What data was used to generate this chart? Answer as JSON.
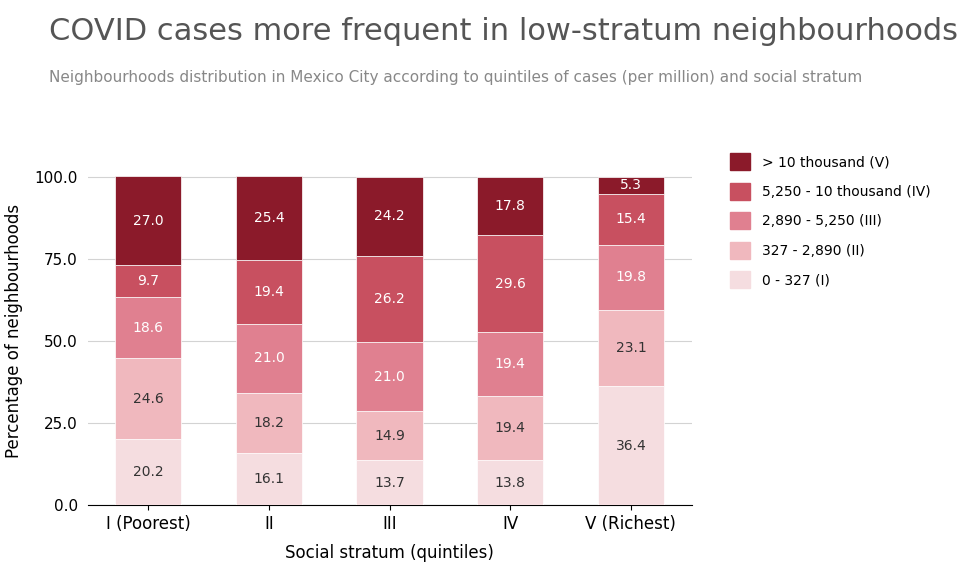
{
  "title": "COVID cases more frequent in low-stratum neighbourhoods",
  "subtitle": "Neighbourhoods distribution in Mexico City according to quintiles of cases (per million) and social stratum",
  "xlabel": "Social stratum (quintiles)",
  "ylabel": "Percentage of neighbourhoods",
  "categories": [
    "I (Poorest)",
    "II",
    "III",
    "IV",
    "V (Richest)"
  ],
  "segments": [
    {
      "label": "0 - 327 (I)",
      "color": "#f5dde0",
      "values": [
        20.2,
        16.1,
        13.7,
        13.8,
        36.4
      ],
      "text_color": "#333333"
    },
    {
      "label": "327 - 2,890 (II)",
      "color": "#f0b8be",
      "values": [
        24.6,
        18.2,
        14.9,
        19.4,
        23.1
      ],
      "text_color": "#333333"
    },
    {
      "label": "2,890 - 5,250 (III)",
      "color": "#e08090",
      "values": [
        18.6,
        21.0,
        21.0,
        19.4,
        19.8
      ],
      "text_color": "white"
    },
    {
      "label": "5,250 - 10 thousand (IV)",
      "color": "#c85060",
      "values": [
        9.7,
        19.4,
        26.2,
        29.6,
        15.4
      ],
      "text_color": "white"
    },
    {
      "label": "> 10 thousand (V)",
      "color": "#8b1a2a",
      "values": [
        27.0,
        25.4,
        24.2,
        17.8,
        5.3
      ],
      "text_color": "white"
    }
  ],
  "ylim": [
    0,
    106
  ],
  "yticks": [
    0.0,
    25.0,
    50.0,
    75.0,
    100.0
  ],
  "background_color": "#ffffff",
  "title_fontsize": 22,
  "subtitle_fontsize": 11,
  "label_fontsize": 10,
  "axis_label_fontsize": 12,
  "tick_fontsize": 11,
  "xtick_fontsize": 12,
  "legend_fontsize": 10
}
